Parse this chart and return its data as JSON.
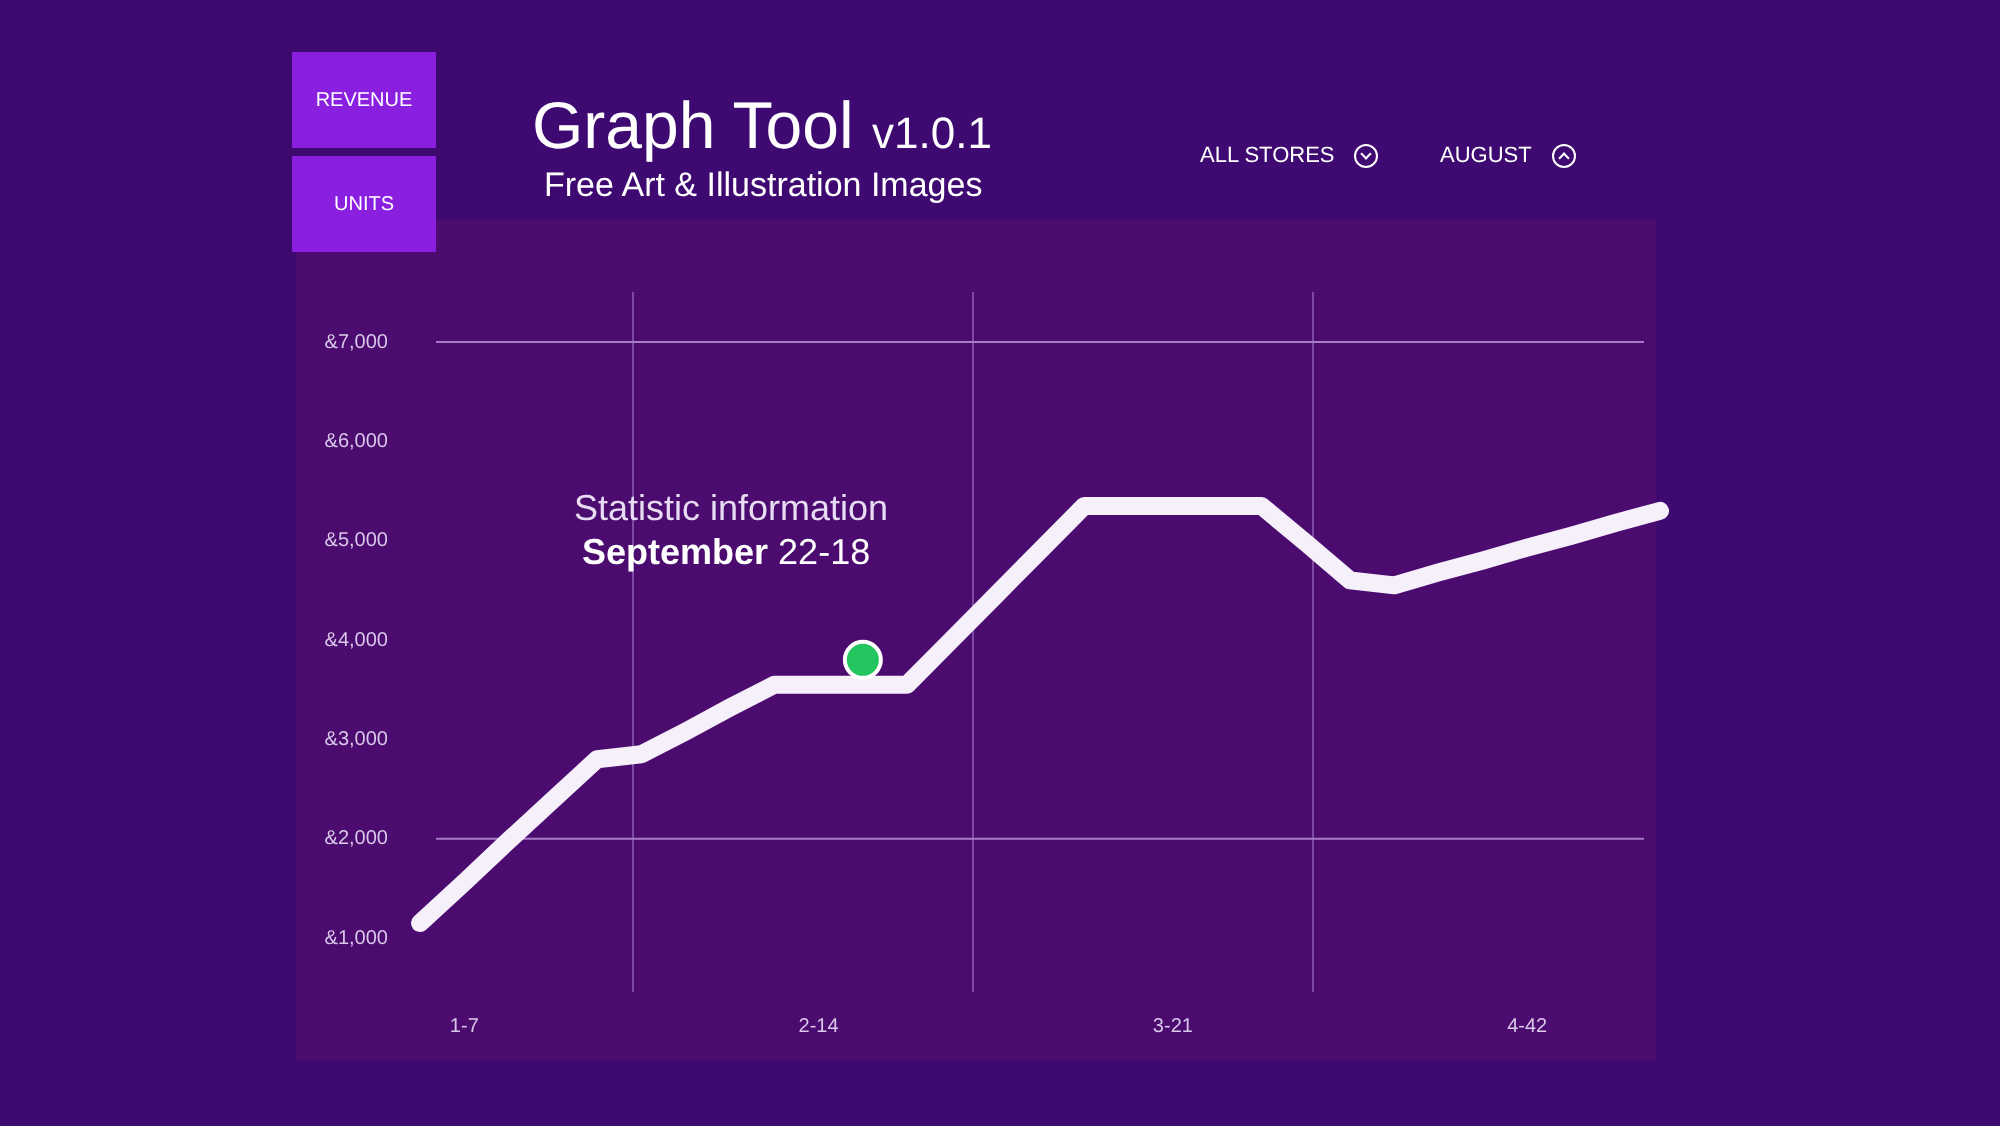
{
  "chart_data": {
    "type": "line",
    "title": "Graph Tool v1.0.1",
    "subtitle": "Free Art & Illustration Images",
    "categories": [
      null,
      "1-7",
      null,
      null,
      null,
      null,
      null,
      null,
      null,
      "2-14",
      null,
      null,
      null,
      null,
      null,
      null,
      null,
      "3-21",
      null,
      null,
      null,
      null,
      null,
      null,
      null,
      "4-42",
      null,
      null,
      null
    ],
    "series": [
      {
        "type": "line",
        "color": "#f6f0fb",
        "values": [
          1150,
          1560,
          1980,
          2390,
          2800,
          2850,
          3080,
          3320,
          3550,
          3550,
          3550,
          3550,
          4000,
          4450,
          4900,
          5350,
          5350,
          5350,
          5350,
          5350,
          4980,
          4600,
          4550,
          4680,
          4800,
          4930,
          5050,
          5180,
          5300
        ]
      },
      {
        "type": "scatter",
        "color": "#22c55e",
        "marker": "circle",
        "values": [
          null,
          null,
          null,
          null,
          null,
          null,
          null,
          null,
          null,
          null,
          3800,
          null,
          null,
          null,
          null,
          null,
          null,
          null,
          null,
          null,
          null,
          null,
          null,
          null,
          null,
          null,
          null,
          null,
          null
        ]
      }
    ],
    "ylim": [
      1000,
      7000
    ],
    "yticks": [
      {
        "value": 1000,
        "label": "&1,000"
      },
      {
        "value": 2000,
        "label": "&2,000"
      },
      {
        "value": 3000,
        "label": "&3,000"
      },
      {
        "value": 4000,
        "label": "&4,000"
      },
      {
        "value": 5000,
        "label": "&5,000"
      },
      {
        "value": 6000,
        "label": "&6,000"
      },
      {
        "value": 7000,
        "label": "&7,000"
      }
    ],
    "ref_lines": [
      {
        "axis": "y",
        "value": 7000,
        "color": "#a77cc7"
      },
      {
        "axis": "y",
        "value": 2000,
        "color": "#a77cc7"
      }
    ],
    "annotations": [
      "REVENUE",
      "UNITS",
      "ALL STORES",
      "AUGUST",
      "Statistic information",
      "September 22-18"
    ],
    "legend": false,
    "grid": false,
    "line_style": "solid"
  }
}
